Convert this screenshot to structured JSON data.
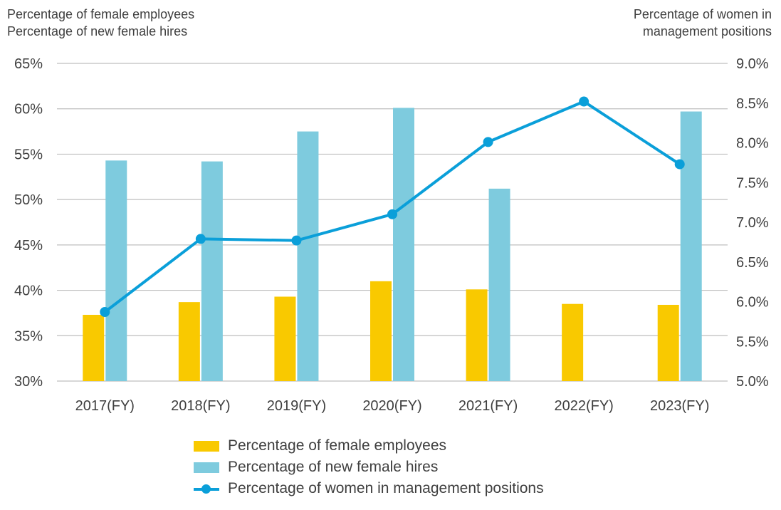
{
  "chart_data": {
    "type": "bar",
    "categories": [
      "2017(FY)",
      "2018(FY)",
      "2019(FY)",
      "2020(FY)",
      "2021(FY)",
      "2022(FY)",
      "2023(FY)"
    ],
    "left_axis": {
      "title_line1": "Percentage of female employees",
      "title_line2": "Percentage of new female hires",
      "ylim": [
        30,
        65
      ],
      "ticks": [
        30,
        35,
        40,
        45,
        50,
        55,
        60,
        65
      ],
      "tick_labels": [
        "30%",
        "35%",
        "40%",
        "45%",
        "50%",
        "55%",
        "60%",
        "65%"
      ]
    },
    "right_axis": {
      "title_line1": "Percentage of women in",
      "title_line2": "management positions",
      "ylim": [
        5.0,
        9.0
      ],
      "ticks": [
        5.0,
        5.5,
        6.0,
        6.5,
        7.0,
        7.5,
        8.0,
        8.5,
        9.0
      ],
      "tick_labels": [
        "5.0%",
        "5.5%",
        "6.0%",
        "6.5%",
        "7.0%",
        "7.5%",
        "8.0%",
        "8.5%",
        "9.0%"
      ]
    },
    "series": [
      {
        "name": "Percentage of female employees",
        "type": "bar",
        "axis": "left",
        "color": "#f9c900",
        "values": [
          37.3,
          38.7,
          39.3,
          41.0,
          40.1,
          38.5,
          38.4
        ]
      },
      {
        "name": "Percentage of new female hires",
        "type": "bar",
        "axis": "left",
        "color": "#7ecbde",
        "values": [
          54.3,
          54.2,
          57.5,
          60.1,
          51.2,
          null,
          59.7
        ]
      },
      {
        "name": "Percentage of women in management positions",
        "type": "line",
        "axis": "right",
        "color": "#0a9fd9",
        "values": [
          5.87,
          6.79,
          6.77,
          7.1,
          8.01,
          8.52,
          7.73
        ]
      }
    ],
    "grid": true,
    "legend_position": "bottom"
  }
}
